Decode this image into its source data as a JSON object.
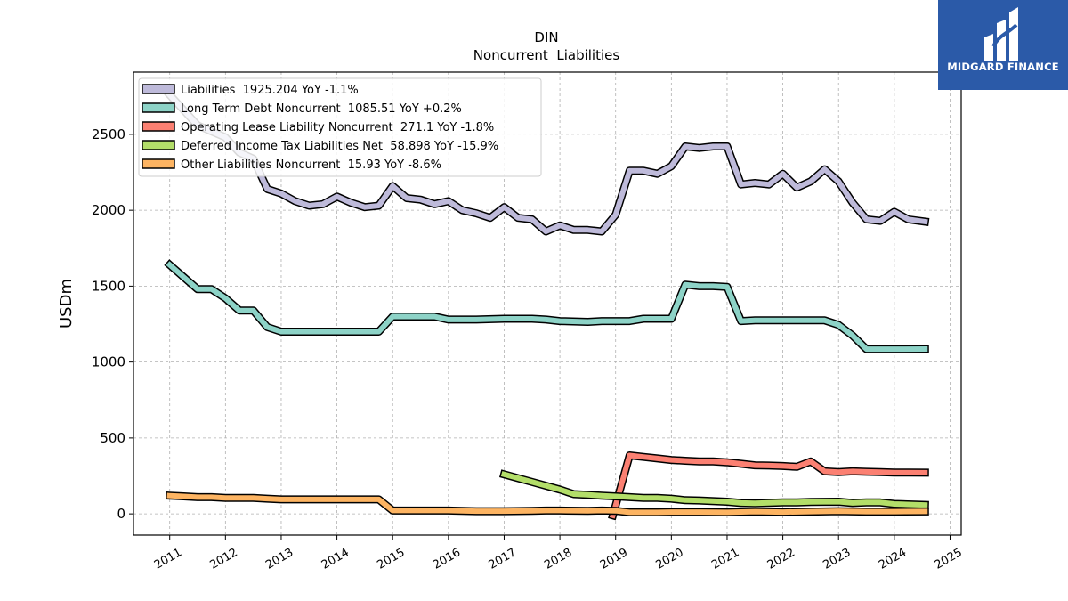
{
  "brand": {
    "name": "MIDGARD FINANCE",
    "color": "#2b5aa8"
  },
  "chart_data": {
    "type": "line",
    "title": "DIN",
    "subtitle": "Noncurrent  Liabilities",
    "xlabel": "",
    "ylabel": "USDm",
    "xlim": [
      2010.35,
      2025.2
    ],
    "ylim": [
      -140,
      2910
    ],
    "x_ticks": [
      "2011",
      "2012",
      "2013",
      "2014",
      "2015",
      "2016",
      "2017",
      "2018",
      "2019",
      "2020",
      "2021",
      "2022",
      "2023",
      "2024",
      "2025"
    ],
    "y_ticks": [
      0,
      500,
      1000,
      1500,
      2000,
      2500
    ],
    "grid": true,
    "legend_position": "top-left",
    "series": [
      {
        "name": "Liabilities  1925.204 YoY -1.1%",
        "color": "#bebada",
        "points": [
          [
            2011.0,
            2760
          ],
          [
            2011.5,
            2560
          ],
          [
            2012.0,
            2480
          ],
          [
            2012.25,
            2380
          ],
          [
            2012.5,
            2340
          ],
          [
            2012.75,
            2140
          ],
          [
            2013.0,
            2110
          ],
          [
            2013.25,
            2060
          ],
          [
            2013.5,
            2030
          ],
          [
            2013.75,
            2040
          ],
          [
            2014.0,
            2090
          ],
          [
            2014.25,
            2050
          ],
          [
            2014.5,
            2020
          ],
          [
            2014.75,
            2030
          ],
          [
            2015.0,
            2160
          ],
          [
            2015.25,
            2080
          ],
          [
            2015.5,
            2070
          ],
          [
            2015.75,
            2040
          ],
          [
            2016.0,
            2060
          ],
          [
            2016.25,
            2000
          ],
          [
            2016.5,
            1980
          ],
          [
            2016.75,
            1950
          ],
          [
            2017.0,
            2020
          ],
          [
            2017.25,
            1950
          ],
          [
            2017.5,
            1940
          ],
          [
            2017.75,
            1860
          ],
          [
            2018.0,
            1900
          ],
          [
            2018.25,
            1870
          ],
          [
            2018.5,
            1870
          ],
          [
            2018.75,
            1860
          ],
          [
            2019.0,
            1970
          ],
          [
            2019.25,
            2260
          ],
          [
            2019.5,
            2260
          ],
          [
            2019.75,
            2240
          ],
          [
            2020.0,
            2290
          ],
          [
            2020.25,
            2420
          ],
          [
            2020.5,
            2410
          ],
          [
            2020.75,
            2420
          ],
          [
            2021.0,
            2420
          ],
          [
            2021.25,
            2170
          ],
          [
            2021.5,
            2180
          ],
          [
            2021.75,
            2170
          ],
          [
            2022.0,
            2240
          ],
          [
            2022.25,
            2150
          ],
          [
            2022.5,
            2190
          ],
          [
            2022.75,
            2270
          ],
          [
            2023.0,
            2190
          ],
          [
            2023.25,
            2050
          ],
          [
            2023.5,
            1940
          ],
          [
            2023.75,
            1930
          ],
          [
            2024.0,
            1990
          ],
          [
            2024.25,
            1940
          ],
          [
            2024.55,
            1925
          ]
        ]
      },
      {
        "name": "Long Term Debt Noncurrent  1085.51 YoY +0.2%",
        "color": "#8dd3c7",
        "points": [
          [
            2011.0,
            1640
          ],
          [
            2011.25,
            1560
          ],
          [
            2011.5,
            1480
          ],
          [
            2011.75,
            1480
          ],
          [
            2012.0,
            1420
          ],
          [
            2012.25,
            1340
          ],
          [
            2012.5,
            1340
          ],
          [
            2012.75,
            1230
          ],
          [
            2013.0,
            1200
          ],
          [
            2013.5,
            1200
          ],
          [
            2014.0,
            1200
          ],
          [
            2014.5,
            1200
          ],
          [
            2014.75,
            1200
          ],
          [
            2015.0,
            1300
          ],
          [
            2015.5,
            1300
          ],
          [
            2015.75,
            1300
          ],
          [
            2016.0,
            1280
          ],
          [
            2016.5,
            1280
          ],
          [
            2017.0,
            1285
          ],
          [
            2017.5,
            1285
          ],
          [
            2017.75,
            1280
          ],
          [
            2018.0,
            1270
          ],
          [
            2018.5,
            1265
          ],
          [
            2018.75,
            1270
          ],
          [
            2019.0,
            1270
          ],
          [
            2019.25,
            1270
          ],
          [
            2019.5,
            1285
          ],
          [
            2019.75,
            1285
          ],
          [
            2020.0,
            1285
          ],
          [
            2020.25,
            1510
          ],
          [
            2020.5,
            1500
          ],
          [
            2020.75,
            1500
          ],
          [
            2021.0,
            1495
          ],
          [
            2021.25,
            1270
          ],
          [
            2021.5,
            1275
          ],
          [
            2022.0,
            1275
          ],
          [
            2022.5,
            1275
          ],
          [
            2022.75,
            1275
          ],
          [
            2023.0,
            1245
          ],
          [
            2023.25,
            1175
          ],
          [
            2023.5,
            1085
          ],
          [
            2024.0,
            1085
          ],
          [
            2024.55,
            1086
          ]
        ]
      },
      {
        "name": "Operating Lease Liability Noncurrent  271.1 YoY -1.8%",
        "color": "#fb8072",
        "points": [
          [
            2018.95,
            -10
          ],
          [
            2019.25,
            385
          ],
          [
            2019.5,
            375
          ],
          [
            2019.75,
            365
          ],
          [
            2020.0,
            355
          ],
          [
            2020.25,
            350
          ],
          [
            2020.5,
            345
          ],
          [
            2020.75,
            345
          ],
          [
            2021.0,
            340
          ],
          [
            2021.25,
            330
          ],
          [
            2021.5,
            320
          ],
          [
            2021.75,
            318
          ],
          [
            2022.0,
            315
          ],
          [
            2022.25,
            310
          ],
          [
            2022.5,
            345
          ],
          [
            2022.75,
            280
          ],
          [
            2023.0,
            275
          ],
          [
            2023.25,
            280
          ],
          [
            2023.5,
            277
          ],
          [
            2023.75,
            275
          ],
          [
            2024.0,
            272
          ],
          [
            2024.25,
            272
          ],
          [
            2024.55,
            271
          ]
        ]
      },
      {
        "name": "Deferred Income Tax Liabilities Net  58.898 YoY -15.9%",
        "color": "#b3de69",
        "points": [
          [
            2017.0,
            260
          ],
          [
            2017.5,
            210
          ],
          [
            2018.0,
            160
          ],
          [
            2018.25,
            130
          ],
          [
            2018.5,
            125
          ],
          [
            2018.75,
            120
          ],
          [
            2019.0,
            115
          ],
          [
            2019.25,
            110
          ],
          [
            2019.5,
            105
          ],
          [
            2019.75,
            105
          ],
          [
            2020.0,
            100
          ],
          [
            2020.25,
            90
          ],
          [
            2020.5,
            88
          ],
          [
            2021.0,
            80
          ],
          [
            2021.25,
            72
          ],
          [
            2021.5,
            70
          ],
          [
            2022.0,
            75
          ],
          [
            2022.25,
            75
          ],
          [
            2022.5,
            78
          ],
          [
            2023.0,
            80
          ],
          [
            2023.25,
            72
          ],
          [
            2023.5,
            75
          ],
          [
            2023.75,
            75
          ],
          [
            2024.0,
            65
          ],
          [
            2024.55,
            59
          ]
        ]
      },
      {
        "name": "Other Liabilities Noncurrent  15.93 YoY -8.6%",
        "color": "#fdb462",
        "points": [
          [
            2011.0,
            120
          ],
          [
            2011.25,
            115
          ],
          [
            2011.5,
            110
          ],
          [
            2011.75,
            110
          ],
          [
            2012.0,
            105
          ],
          [
            2012.5,
            105
          ],
          [
            2012.75,
            100
          ],
          [
            2013.0,
            95
          ],
          [
            2013.5,
            95
          ],
          [
            2014.0,
            95
          ],
          [
            2014.5,
            95
          ],
          [
            2014.75,
            95
          ],
          [
            2015.0,
            22
          ],
          [
            2015.5,
            22
          ],
          [
            2016.0,
            22
          ],
          [
            2016.5,
            18
          ],
          [
            2017.0,
            18
          ],
          [
            2017.5,
            20
          ],
          [
            2017.75,
            22
          ],
          [
            2018.0,
            22
          ],
          [
            2018.5,
            20
          ],
          [
            2018.75,
            22
          ],
          [
            2019.0,
            20
          ],
          [
            2019.25,
            10
          ],
          [
            2019.75,
            10
          ],
          [
            2020.0,
            12
          ],
          [
            2020.5,
            12
          ],
          [
            2021.0,
            10
          ],
          [
            2021.5,
            15
          ],
          [
            2022.0,
            12
          ],
          [
            2022.5,
            15
          ],
          [
            2023.0,
            18
          ],
          [
            2023.5,
            15
          ],
          [
            2024.0,
            15
          ],
          [
            2024.55,
            16
          ]
        ]
      }
    ]
  }
}
